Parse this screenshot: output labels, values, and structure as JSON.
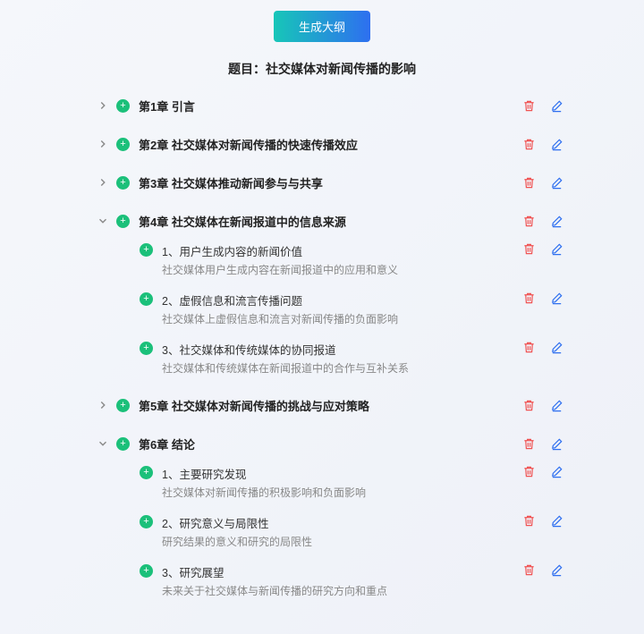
{
  "button_label": "生成大纲",
  "title_prefix": "题目：",
  "title": "社交媒体对新闻传播的影响",
  "icons": {
    "plus": "+"
  },
  "colors": {
    "accent_green": "#1bc07a",
    "delete_red": "#f05252",
    "edit_blue": "#2e6ff0",
    "btn_grad_start": "#17c6b8",
    "btn_grad_end": "#2e6ff0"
  },
  "chapters": [
    {
      "expanded": false,
      "title": "第1章 引言",
      "subs": []
    },
    {
      "expanded": false,
      "title": "第2章 社交媒体对新闻传播的快速传播效应",
      "subs": []
    },
    {
      "expanded": false,
      "title": "第3章 社交媒体推动新闻参与与共享",
      "subs": []
    },
    {
      "expanded": true,
      "title": "第4章 社交媒体在新闻报道中的信息来源",
      "subs": [
        {
          "title": "1、用户生成内容的新闻价值",
          "desc": "社交媒体用户生成内容在新闻报道中的应用和意义"
        },
        {
          "title": "2、虚假信息和流言传播问题",
          "desc": "社交媒体上虚假信息和流言对新闻传播的负面影响"
        },
        {
          "title": "3、社交媒体和传统媒体的协同报道",
          "desc": "社交媒体和传统媒体在新闻报道中的合作与互补关系"
        }
      ]
    },
    {
      "expanded": false,
      "title": "第5章 社交媒体对新闻传播的挑战与应对策略",
      "subs": []
    },
    {
      "expanded": true,
      "title": "第6章 结论",
      "subs": [
        {
          "title": "1、主要研究发现",
          "desc": "社交媒体对新闻传播的积极影响和负面影响"
        },
        {
          "title": "2、研究意义与局限性",
          "desc": "研究结果的意义和研究的局限性"
        },
        {
          "title": "3、研究展望",
          "desc": "未来关于社交媒体与新闻传播的研究方向和重点"
        }
      ]
    }
  ]
}
